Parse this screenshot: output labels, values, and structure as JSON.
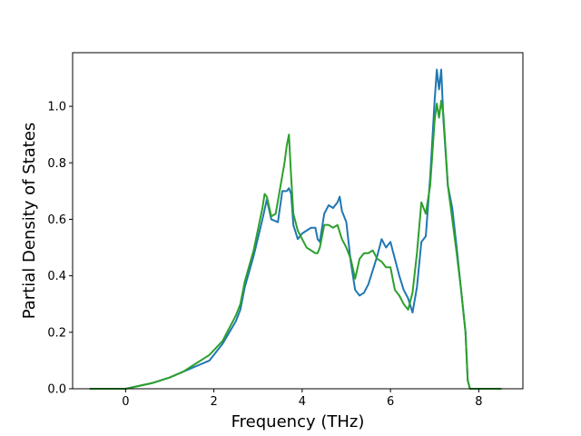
{
  "chart_data": {
    "type": "line",
    "title": "",
    "xlabel": "Frequency (THz)",
    "ylabel": "Partial Density of States",
    "xlim": [
      -1.2,
      9.0
    ],
    "ylim": [
      0.0,
      1.19
    ],
    "xticks": [
      0,
      2,
      4,
      6,
      8
    ],
    "yticks": [
      0.0,
      0.2,
      0.4,
      0.6,
      0.8,
      1.0
    ],
    "xtick_labels": [
      "0",
      "2",
      "4",
      "6",
      "8"
    ],
    "ytick_labels": [
      "0.0",
      "0.2",
      "0.4",
      "0.6",
      "0.8",
      "1.0"
    ],
    "grid": false,
    "legend": "none",
    "series": [
      {
        "color": "#1f77b4",
        "x": [
          -0.8,
          0.0,
          0.3,
          0.6,
          1.0,
          1.3,
          1.6,
          1.9,
          2.2,
          2.5,
          2.6,
          2.7,
          2.9,
          3.1,
          3.2,
          3.3,
          3.45,
          3.55,
          3.65,
          3.7,
          3.75,
          3.8,
          3.9,
          4.0,
          4.1,
          4.2,
          4.3,
          4.35,
          4.4,
          4.5,
          4.6,
          4.7,
          4.8,
          4.85,
          4.9,
          5.0,
          5.1,
          5.2,
          5.3,
          5.4,
          5.5,
          5.6,
          5.7,
          5.8,
          5.9,
          6.0,
          6.1,
          6.2,
          6.3,
          6.4,
          6.5,
          6.6,
          6.7,
          6.8,
          6.9,
          7.0,
          7.05,
          7.1,
          7.15,
          7.2,
          7.3,
          7.4,
          7.5,
          7.6,
          7.7,
          7.75,
          7.8,
          7.9,
          8.0,
          8.5
        ],
        "y": [
          0.0,
          0.0,
          0.01,
          0.02,
          0.04,
          0.06,
          0.08,
          0.1,
          0.16,
          0.24,
          0.28,
          0.36,
          0.47,
          0.6,
          0.67,
          0.6,
          0.59,
          0.7,
          0.7,
          0.71,
          0.69,
          0.58,
          0.53,
          0.55,
          0.56,
          0.57,
          0.57,
          0.53,
          0.52,
          0.62,
          0.65,
          0.64,
          0.66,
          0.68,
          0.63,
          0.59,
          0.45,
          0.35,
          0.33,
          0.34,
          0.37,
          0.42,
          0.47,
          0.53,
          0.5,
          0.52,
          0.46,
          0.4,
          0.35,
          0.32,
          0.27,
          0.36,
          0.52,
          0.54,
          0.75,
          1.02,
          1.13,
          1.06,
          1.13,
          0.95,
          0.72,
          0.64,
          0.5,
          0.35,
          0.2,
          0.03,
          0.0,
          0.0,
          0.0,
          0.0
        ]
      },
      {
        "color": "#2ca02c",
        "x": [
          -0.8,
          0.0,
          0.3,
          0.6,
          1.0,
          1.3,
          1.6,
          1.8,
          1.9,
          2.2,
          2.5,
          2.6,
          2.7,
          2.9,
          3.1,
          3.15,
          3.2,
          3.3,
          3.4,
          3.5,
          3.6,
          3.65,
          3.7,
          3.75,
          3.8,
          3.9,
          4.0,
          4.1,
          4.2,
          4.3,
          4.35,
          4.4,
          4.5,
          4.6,
          4.7,
          4.8,
          4.9,
          5.0,
          5.1,
          5.2,
          5.3,
          5.4,
          5.5,
          5.6,
          5.7,
          5.8,
          5.9,
          6.0,
          6.1,
          6.2,
          6.3,
          6.4,
          6.5,
          6.6,
          6.7,
          6.8,
          6.9,
          7.0,
          7.05,
          7.1,
          7.15,
          7.2,
          7.3,
          7.4,
          7.5,
          7.6,
          7.7,
          7.75,
          7.8,
          7.9,
          8.0,
          8.5
        ],
        "y": [
          0.0,
          0.0,
          0.01,
          0.02,
          0.04,
          0.06,
          0.09,
          0.11,
          0.12,
          0.17,
          0.26,
          0.3,
          0.38,
          0.49,
          0.64,
          0.69,
          0.68,
          0.61,
          0.62,
          0.71,
          0.8,
          0.86,
          0.9,
          0.75,
          0.62,
          0.56,
          0.53,
          0.5,
          0.49,
          0.48,
          0.48,
          0.5,
          0.58,
          0.58,
          0.57,
          0.58,
          0.53,
          0.5,
          0.46,
          0.39,
          0.46,
          0.48,
          0.48,
          0.49,
          0.46,
          0.45,
          0.43,
          0.43,
          0.35,
          0.33,
          0.3,
          0.28,
          0.34,
          0.48,
          0.66,
          0.62,
          0.72,
          0.95,
          1.01,
          0.96,
          1.02,
          0.97,
          0.72,
          0.6,
          0.48,
          0.35,
          0.2,
          0.03,
          0.0,
          0.0,
          0.0,
          0.0
        ]
      }
    ]
  }
}
